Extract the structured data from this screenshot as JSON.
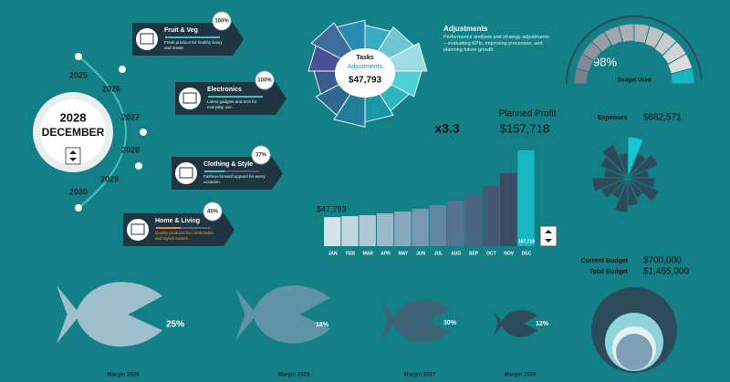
{
  "timeline": {
    "years": [
      "2025",
      "2026",
      "2027",
      "2028",
      "2029",
      "2030"
    ],
    "selected_year": "2028",
    "selected_month": "DECEMBER"
  },
  "cards": [
    {
      "name": "Fruit & Veg",
      "value": 100,
      "label": "100%",
      "desc": "Fresh produce for healthy living and meals."
    },
    {
      "name": "Electronics",
      "value": 100,
      "label": "100%",
      "desc": "Latest gadgets and tech for everyday use."
    },
    {
      "name": "Clothing & Style",
      "value": 37,
      "label": "37%",
      "desc": "Fashion-forward apparel for every occasion."
    },
    {
      "name": "Home & Living",
      "value": 45,
      "label": "45%",
      "desc": "Quality products for comfortable and stylish homes."
    }
  ],
  "wheel": {
    "title": "Tasks",
    "subtitle": "Adjustments",
    "value": "$47,793"
  },
  "adjustments": {
    "title": "Adjustments",
    "text": "Performance analysis and strategy adjustments – evaluating KPIs, improving processes, and planning future growth."
  },
  "gauge": {
    "value": 98,
    "label": "98%",
    "caption": "Budget Used"
  },
  "expenses": {
    "label": "Expenses",
    "value": "$682,571"
  },
  "multiplier": "x3.3",
  "planned_profit": {
    "label": "Planned Profit",
    "value": "$157,718"
  },
  "budget": {
    "current_label": "Current Budget",
    "current": "$700,000",
    "total_label": "Total Budget",
    "total": "$1,455,000"
  },
  "margins": [
    {
      "label": "25%",
      "name": "Margin 2029"
    },
    {
      "label": "18%",
      "name": "Margin 2028"
    },
    {
      "label": "30%",
      "name": "Margin 2027"
    },
    {
      "label": "12%",
      "name": "Margin 2026"
    }
  ],
  "chart_data": {
    "type": "bar",
    "categories": [
      "JAN",
      "FEB",
      "MAR",
      "APR",
      "MAY",
      "JUN",
      "JUL",
      "AUG",
      "SEP",
      "OCT",
      "NOV",
      "DEC"
    ],
    "values": [
      47793,
      49500,
      51000,
      54000,
      57000,
      61500,
      67500,
      75000,
      85500,
      99000,
      120000,
      157718
    ],
    "value_labels": [
      "$47,793",
      null,
      null,
      null,
      null,
      null,
      null,
      null,
      null,
      null,
      null,
      "157,718"
    ]
  }
}
